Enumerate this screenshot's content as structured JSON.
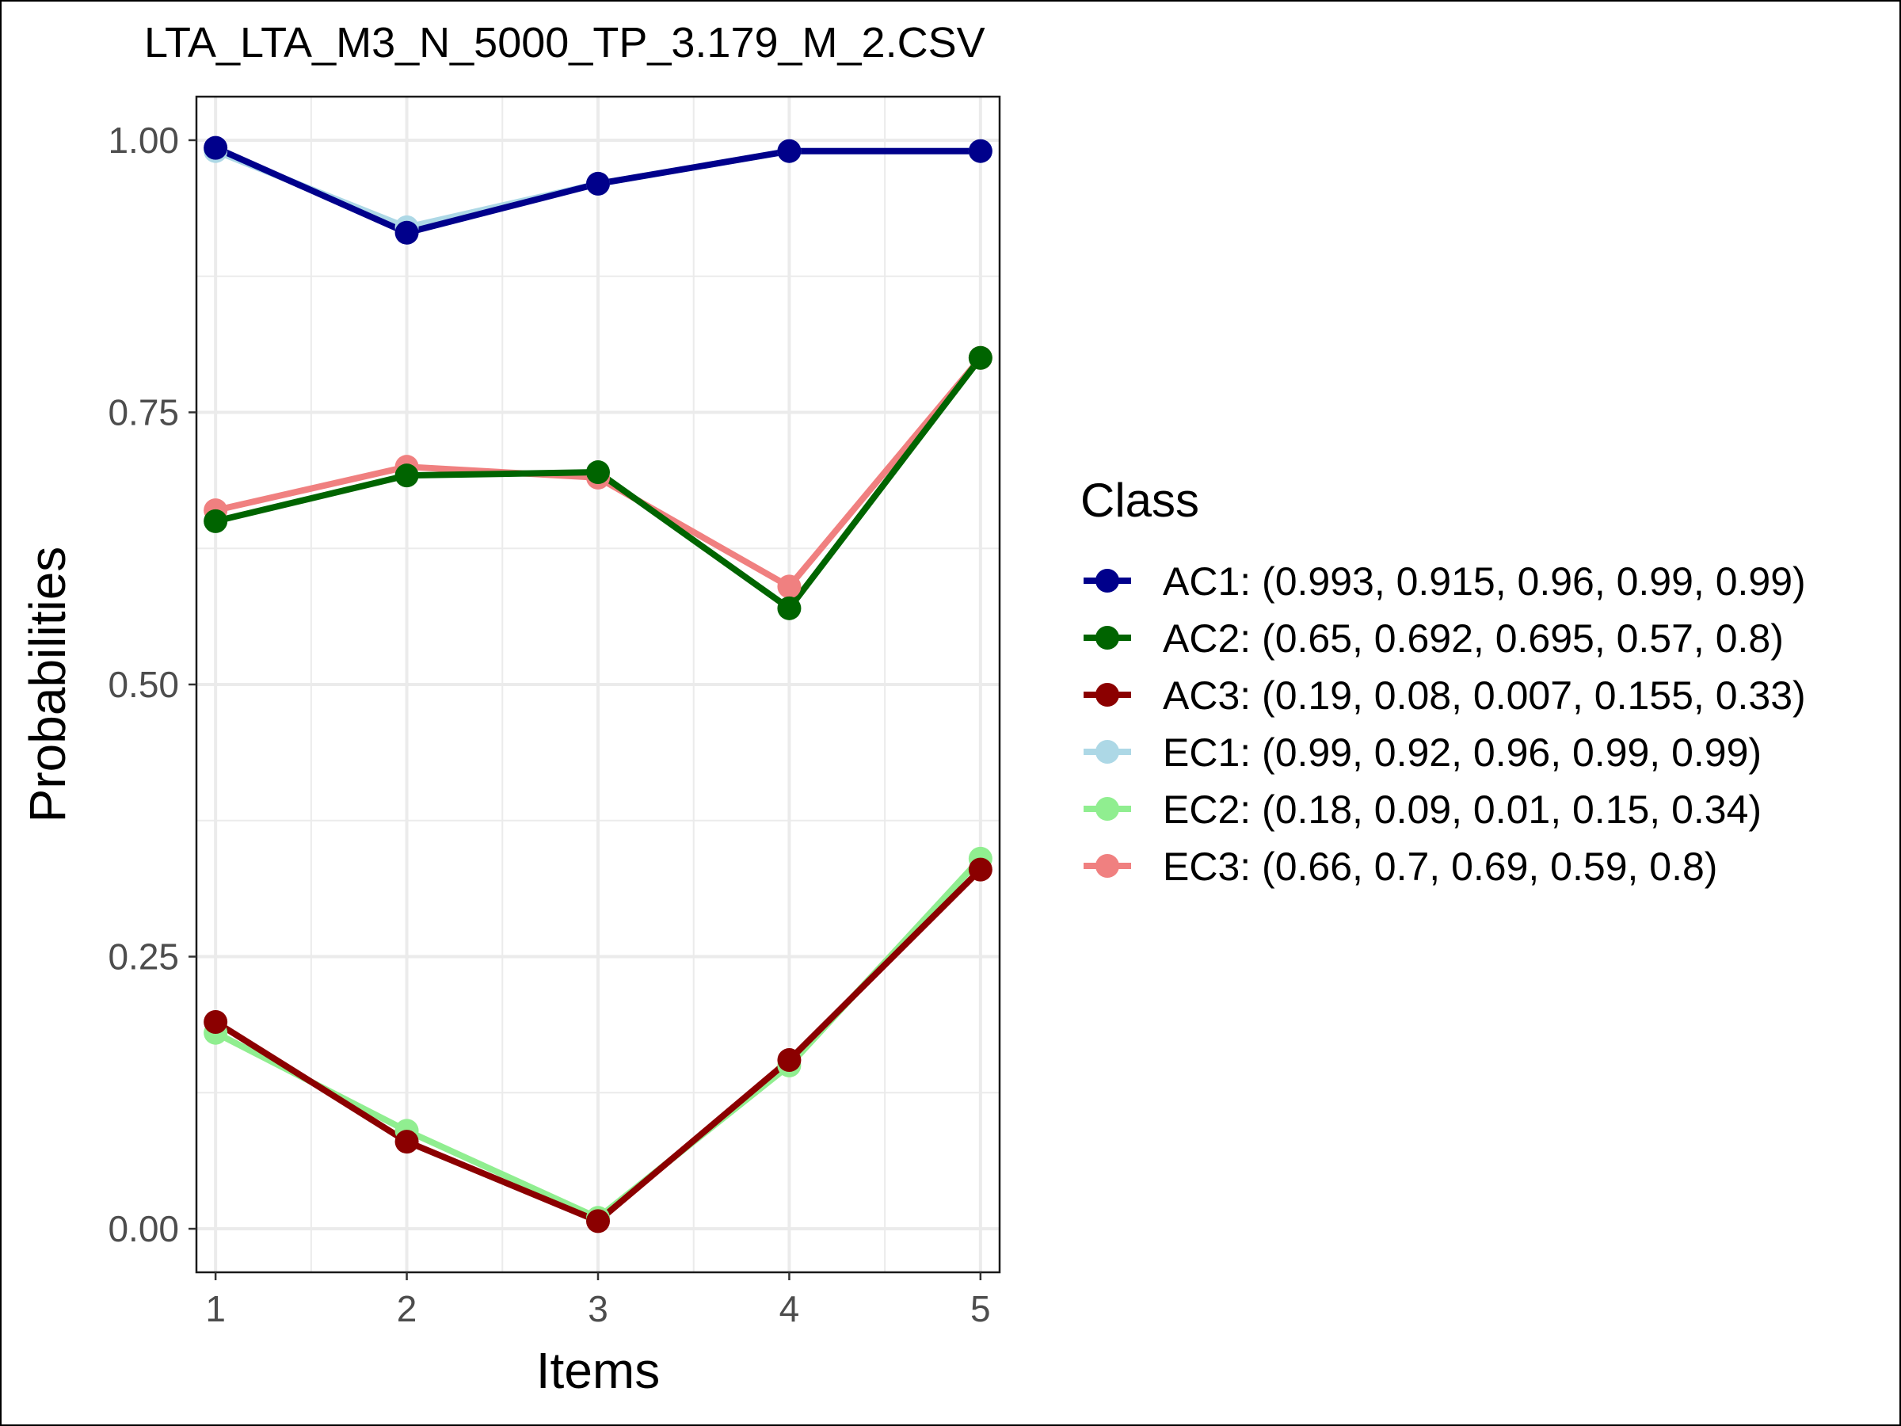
{
  "chart_data": {
    "type": "line",
    "title": "LTA_LTA_M3_N_5000_TP_3.179_M_2.CSV",
    "xlabel": "Items",
    "ylabel": "Probabilities",
    "x": [
      1,
      2,
      3,
      4,
      5
    ],
    "x_ticks": [
      "1",
      "2",
      "3",
      "4",
      "5"
    ],
    "y_ticks": [
      "0.00",
      "0.25",
      "0.50",
      "0.75",
      "1.00"
    ],
    "xlim": [
      0.9,
      5.1
    ],
    "ylim": [
      -0.04,
      1.04
    ],
    "grid": true,
    "legend": {
      "title": "Class",
      "position": "right"
    },
    "series": [
      {
        "name": "AC1",
        "label": "AC1: (0.993, 0.915, 0.96, 0.99, 0.99)",
        "color": "#00008B",
        "values": [
          0.993,
          0.915,
          0.96,
          0.99,
          0.99
        ]
      },
      {
        "name": "AC2",
        "label": "AC2: (0.65, 0.692, 0.695, 0.57, 0.8)",
        "color": "#006400",
        "values": [
          0.65,
          0.692,
          0.695,
          0.57,
          0.8
        ]
      },
      {
        "name": "AC3",
        "label": "AC3: (0.19, 0.08, 0.007, 0.155, 0.33)",
        "color": "#8B0000",
        "values": [
          0.19,
          0.08,
          0.007,
          0.155,
          0.33
        ]
      },
      {
        "name": "EC1",
        "label": "EC1: (0.99, 0.92, 0.96, 0.99, 0.99)",
        "color": "#ADD8E6",
        "values": [
          0.99,
          0.92,
          0.96,
          0.99,
          0.99
        ]
      },
      {
        "name": "EC2",
        "label": "EC2: (0.18, 0.09, 0.01, 0.15, 0.34)",
        "color": "#90EE90",
        "values": [
          0.18,
          0.09,
          0.01,
          0.15,
          0.34
        ]
      },
      {
        "name": "EC3",
        "label": "EC3: (0.66, 0.7, 0.69, 0.59, 0.8)",
        "color": "#F08080",
        "values": [
          0.66,
          0.7,
          0.69,
          0.59,
          0.8
        ]
      }
    ],
    "draw_order": [
      "EC1",
      "EC2",
      "EC3",
      "AC1",
      "AC2",
      "AC3"
    ]
  }
}
